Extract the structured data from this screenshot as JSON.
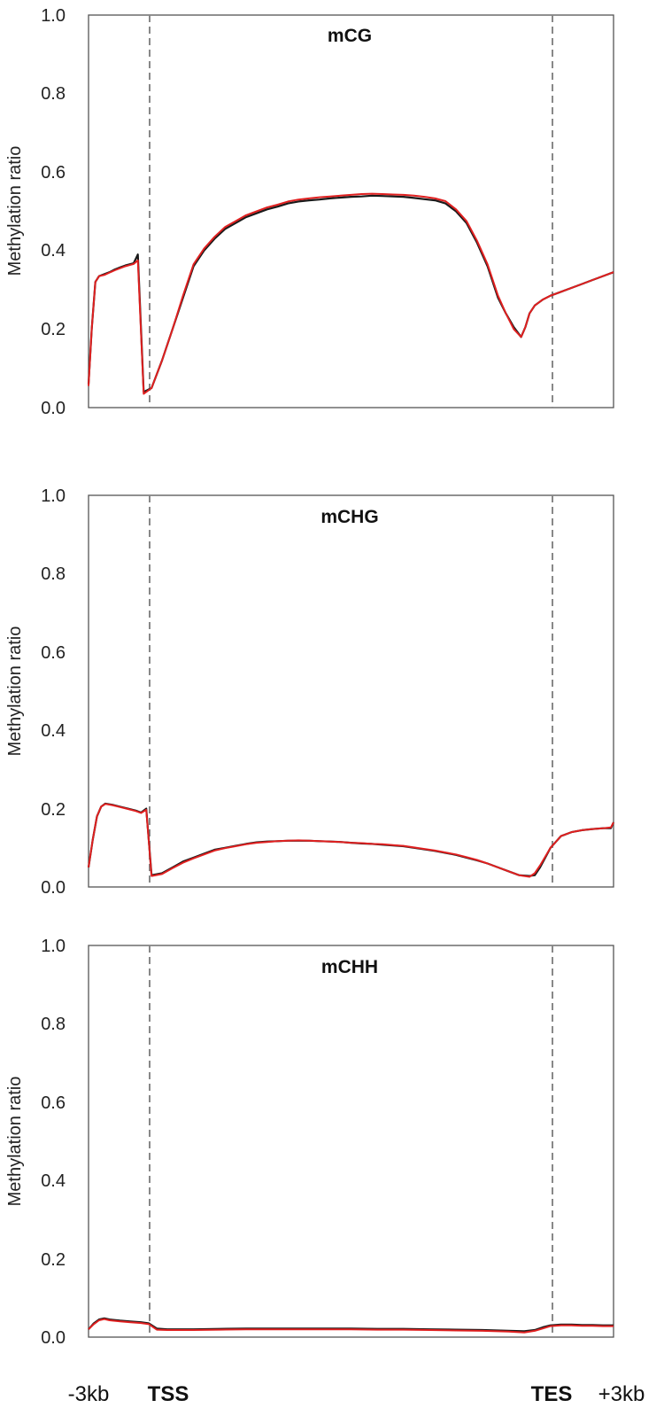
{
  "chart_data": [
    {
      "type": "line",
      "title": "mCG",
      "ylabel": "Methylation ratio",
      "ylim": [
        0,
        1.0
      ],
      "yticks": [
        "0.0",
        "0.2",
        "0.4",
        "0.6",
        "0.8",
        "1.0"
      ],
      "grid": false,
      "markers": [
        "TSS",
        "TES"
      ],
      "series": [
        {
          "color": "#1a1a1a",
          "x": [
            0,
            0.6,
            1.3,
            2.0,
            3.0,
            4.0,
            5.0,
            6.0,
            7.0,
            7.8,
            8.6,
            9.4,
            10.5,
            12,
            14,
            16,
            18,
            20,
            22,
            24,
            26,
            28,
            30,
            32,
            34,
            36,
            38,
            40,
            42,
            44,
            46,
            48,
            50,
            52,
            54,
            56,
            58,
            60,
            62,
            64,
            66,
            68,
            70,
            72,
            74,
            76,
            78,
            79.5,
            81,
            82.4,
            83.2,
            84,
            85,
            86.5,
            88,
            90,
            92,
            94,
            96,
            98,
            100
          ],
          "y": [
            0.06,
            0.2,
            0.32,
            0.335,
            0.34,
            0.345,
            0.352,
            0.357,
            0.362,
            0.365,
            0.368,
            0.39,
            0.04,
            0.05,
            0.12,
            0.2,
            0.28,
            0.36,
            0.4,
            0.43,
            0.455,
            0.47,
            0.485,
            0.495,
            0.505,
            0.512,
            0.52,
            0.525,
            0.528,
            0.53,
            0.533,
            0.535,
            0.537,
            0.538,
            0.54,
            0.539,
            0.538,
            0.537,
            0.534,
            0.531,
            0.528,
            0.52,
            0.5,
            0.47,
            0.42,
            0.36,
            0.28,
            0.24,
            0.205,
            0.18,
            0.205,
            0.24,
            0.26,
            0.275,
            0.285,
            0.295,
            0.305,
            0.315,
            0.325,
            0.335,
            0.345
          ]
        },
        {
          "color": "#e02020",
          "x": [
            0,
            0.6,
            1.3,
            2.0,
            3.0,
            4.0,
            5.0,
            6.0,
            7.0,
            7.8,
            8.6,
            9.4,
            10.5,
            12,
            14,
            16,
            18,
            20,
            22,
            24,
            26,
            28,
            30,
            32,
            34,
            36,
            38,
            40,
            42,
            44,
            46,
            48,
            50,
            52,
            54,
            56,
            58,
            60,
            62,
            64,
            66,
            68,
            70,
            72,
            74,
            76,
            78,
            79.5,
            81,
            82.4,
            83.2,
            84,
            85,
            86.5,
            88,
            90,
            92,
            94,
            96,
            98,
            100
          ],
          "y": [
            0.055,
            0.2,
            0.32,
            0.335,
            0.338,
            0.344,
            0.35,
            0.355,
            0.36,
            0.363,
            0.366,
            0.375,
            0.035,
            0.05,
            0.12,
            0.2,
            0.285,
            0.365,
            0.405,
            0.435,
            0.46,
            0.475,
            0.49,
            0.5,
            0.51,
            0.517,
            0.525,
            0.53,
            0.533,
            0.536,
            0.538,
            0.54,
            0.542,
            0.544,
            0.545,
            0.544,
            0.543,
            0.542,
            0.54,
            0.537,
            0.533,
            0.526,
            0.505,
            0.475,
            0.425,
            0.365,
            0.285,
            0.24,
            0.2,
            0.18,
            0.205,
            0.24,
            0.26,
            0.275,
            0.285,
            0.295,
            0.305,
            0.315,
            0.325,
            0.335,
            0.345
          ]
        }
      ]
    },
    {
      "type": "line",
      "title": "mCHG",
      "ylabel": "Methylation ratio",
      "ylim": [
        0,
        1.0
      ],
      "yticks": [
        "0.0",
        "0.2",
        "0.4",
        "0.6",
        "0.8",
        "1.0"
      ],
      "grid": false,
      "markers": [
        "TSS",
        "TES"
      ],
      "series": [
        {
          "color": "#1a1a1a",
          "x": [
            0,
            0.8,
            1.6,
            2.4,
            3.2,
            4.5,
            6.0,
            7.5,
            9.0,
            10.0,
            11.0,
            12,
            14,
            16,
            18,
            20,
            22,
            24,
            26,
            28,
            30,
            32,
            34,
            36,
            38,
            40,
            42,
            44,
            46,
            48,
            50,
            52,
            54,
            56,
            58,
            60,
            62,
            64,
            66,
            68,
            70,
            72,
            74,
            76,
            78,
            80,
            82,
            84,
            85,
            86,
            88,
            90,
            92,
            94,
            96,
            98,
            99.5,
            100
          ],
          "y": [
            0.05,
            0.12,
            0.18,
            0.205,
            0.213,
            0.21,
            0.205,
            0.2,
            0.195,
            0.19,
            0.2,
            0.03,
            0.035,
            0.05,
            0.065,
            0.075,
            0.085,
            0.095,
            0.1,
            0.105,
            0.11,
            0.114,
            0.116,
            0.117,
            0.118,
            0.118,
            0.118,
            0.117,
            0.116,
            0.115,
            0.113,
            0.111,
            0.11,
            0.108,
            0.106,
            0.104,
            0.1,
            0.096,
            0.092,
            0.087,
            0.082,
            0.075,
            0.068,
            0.06,
            0.05,
            0.04,
            0.03,
            0.028,
            0.03,
            0.05,
            0.1,
            0.13,
            0.14,
            0.145,
            0.148,
            0.15,
            0.15,
            0.165
          ]
        },
        {
          "color": "#e02020",
          "x": [
            0,
            0.8,
            1.6,
            2.4,
            3.2,
            4.5,
            6.0,
            7.5,
            9.0,
            10.0,
            11.0,
            12,
            14,
            16,
            18,
            20,
            22,
            24,
            26,
            28,
            30,
            32,
            34,
            36,
            38,
            40,
            42,
            44,
            46,
            48,
            50,
            52,
            54,
            56,
            58,
            60,
            62,
            64,
            66,
            68,
            70,
            72,
            74,
            76,
            78,
            80,
            82,
            84,
            85,
            86,
            88,
            90,
            92,
            94,
            96,
            98,
            99.5,
            100
          ],
          "y": [
            0.05,
            0.12,
            0.18,
            0.205,
            0.212,
            0.209,
            0.204,
            0.199,
            0.194,
            0.189,
            0.197,
            0.028,
            0.033,
            0.048,
            0.062,
            0.073,
            0.083,
            0.093,
            0.099,
            0.104,
            0.109,
            0.113,
            0.115,
            0.117,
            0.118,
            0.119,
            0.118,
            0.117,
            0.116,
            0.115,
            0.113,
            0.112,
            0.11,
            0.109,
            0.107,
            0.105,
            0.101,
            0.097,
            0.093,
            0.088,
            0.083,
            0.076,
            0.069,
            0.06,
            0.05,
            0.04,
            0.03,
            0.026,
            0.035,
            0.055,
            0.1,
            0.13,
            0.14,
            0.145,
            0.148,
            0.15,
            0.152,
            0.165
          ]
        }
      ]
    },
    {
      "type": "line",
      "title": "mCHH",
      "ylabel": "Methylation ratio",
      "ylim": [
        0,
        1.0
      ],
      "yticks": [
        "0.0",
        "0.2",
        "0.4",
        "0.6",
        "0.8",
        "1.0"
      ],
      "grid": false,
      "markers": [
        "TSS",
        "TES"
      ],
      "xticks": [
        "-3kb",
        "TSS",
        "TES",
        "+3kb"
      ],
      "series": [
        {
          "color": "#1a1a1a",
          "x": [
            0,
            1,
            2,
            3,
            4,
            6,
            8,
            10,
            11.5,
            13,
            15,
            20,
            25,
            30,
            35,
            40,
            45,
            50,
            55,
            60,
            65,
            70,
            75,
            80,
            83,
            85,
            86.5,
            88,
            90,
            92,
            94,
            96,
            98,
            100
          ],
          "y": [
            0.02,
            0.035,
            0.045,
            0.048,
            0.045,
            0.042,
            0.04,
            0.038,
            0.035,
            0.022,
            0.02,
            0.02,
            0.021,
            0.022,
            0.022,
            0.022,
            0.022,
            0.022,
            0.021,
            0.021,
            0.02,
            0.019,
            0.018,
            0.016,
            0.015,
            0.018,
            0.025,
            0.03,
            0.032,
            0.032,
            0.031,
            0.031,
            0.03,
            0.03
          ]
        },
        {
          "color": "#e02020",
          "x": [
            0,
            1,
            2,
            3,
            4,
            6,
            8,
            10,
            11.5,
            13,
            15,
            20,
            25,
            30,
            35,
            40,
            45,
            50,
            55,
            60,
            65,
            70,
            75,
            80,
            83,
            85,
            86.5,
            88,
            90,
            92,
            94,
            96,
            98,
            100
          ],
          "y": [
            0.02,
            0.033,
            0.043,
            0.046,
            0.043,
            0.04,
            0.038,
            0.036,
            0.033,
            0.019,
            0.018,
            0.018,
            0.019,
            0.02,
            0.02,
            0.02,
            0.02,
            0.02,
            0.019,
            0.019,
            0.018,
            0.017,
            0.016,
            0.014,
            0.012,
            0.016,
            0.022,
            0.028,
            0.03,
            0.03,
            0.029,
            0.029,
            0.028,
            0.028
          ]
        }
      ]
    }
  ]
}
